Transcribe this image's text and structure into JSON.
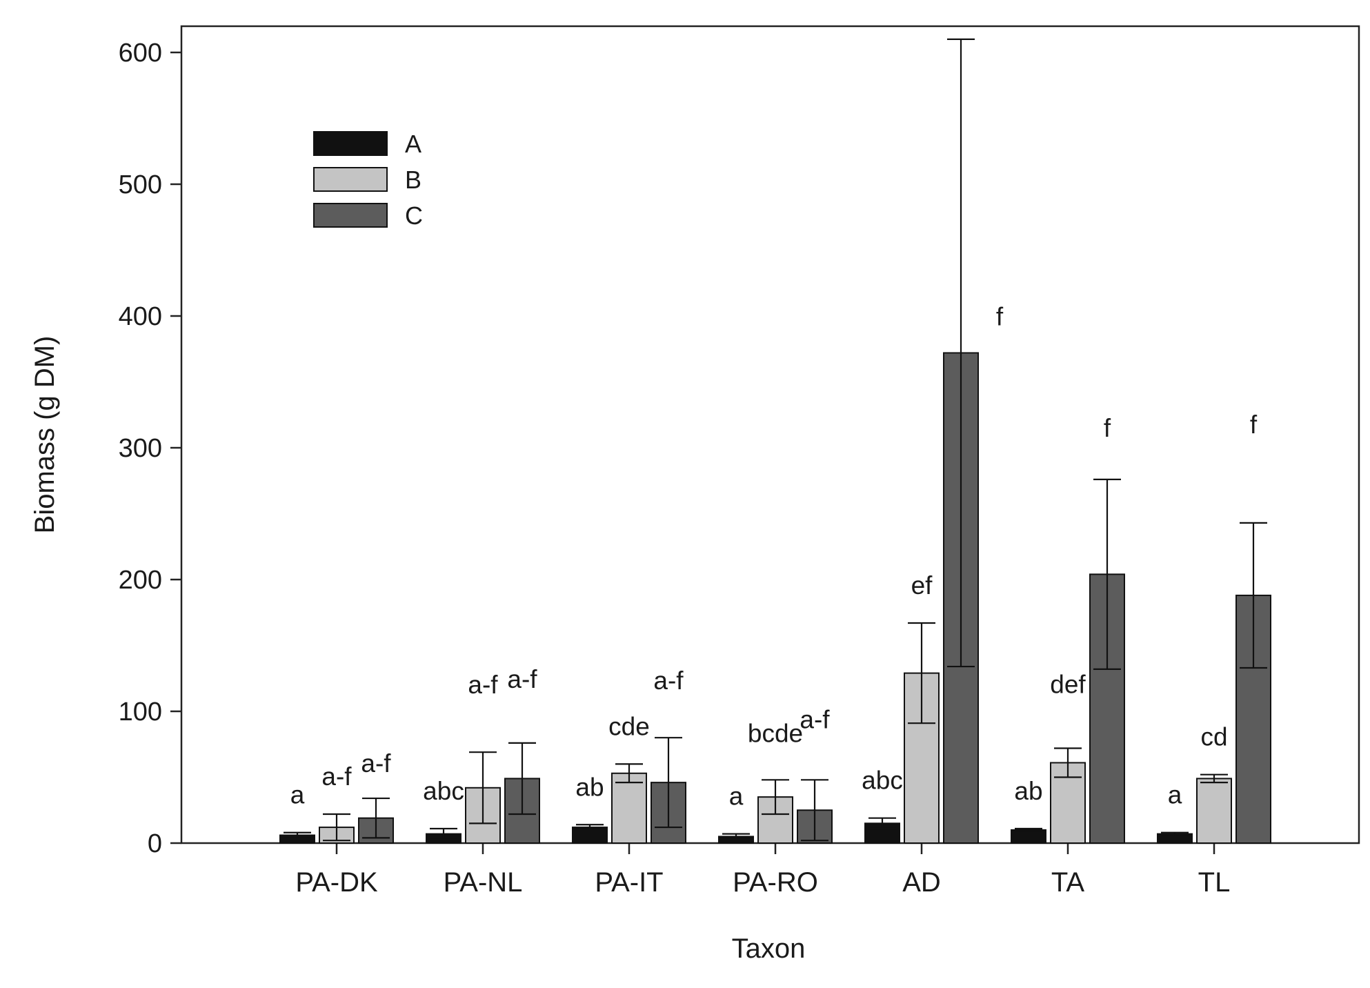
{
  "chart_data": {
    "type": "bar",
    "xlabel": "Taxon",
    "ylabel": "Biomass (g DM)",
    "ylim": [
      0,
      600
    ],
    "yticks": [
      0,
      100,
      200,
      300,
      400,
      500,
      600
    ],
    "grid": false,
    "legend_position": "top-left",
    "categories": [
      "PA-DK",
      "PA-NL",
      "PA-IT",
      "PA-RO",
      "AD",
      "TA",
      "TL"
    ],
    "series": [
      {
        "name": "A",
        "color": "#111111",
        "values": [
          6,
          7,
          12,
          5,
          15,
          10,
          7
        ],
        "error": [
          2,
          4,
          2,
          2,
          4,
          1,
          1
        ],
        "labels": [
          "a",
          "abc",
          "ab",
          "a",
          "abc",
          "ab",
          "a"
        ]
      },
      {
        "name": "B",
        "color": "#c4c4c4",
        "values": [
          12,
          42,
          53,
          35,
          129,
          61,
          49
        ],
        "error": [
          10,
          27,
          7,
          13,
          38,
          11,
          3
        ],
        "labels": [
          "a-f",
          "a-f",
          "cde",
          "bcde",
          "ef",
          "def",
          "cd"
        ]
      },
      {
        "name": "C",
        "color": "#5c5c5c",
        "values": [
          19,
          49,
          46,
          25,
          372,
          204,
          188
        ],
        "error": [
          15,
          27,
          34,
          23,
          238,
          72,
          55
        ],
        "labels": [
          "a-f",
          "a-f",
          "a-f",
          "a-f",
          "f",
          "f",
          "f"
        ]
      }
    ]
  }
}
